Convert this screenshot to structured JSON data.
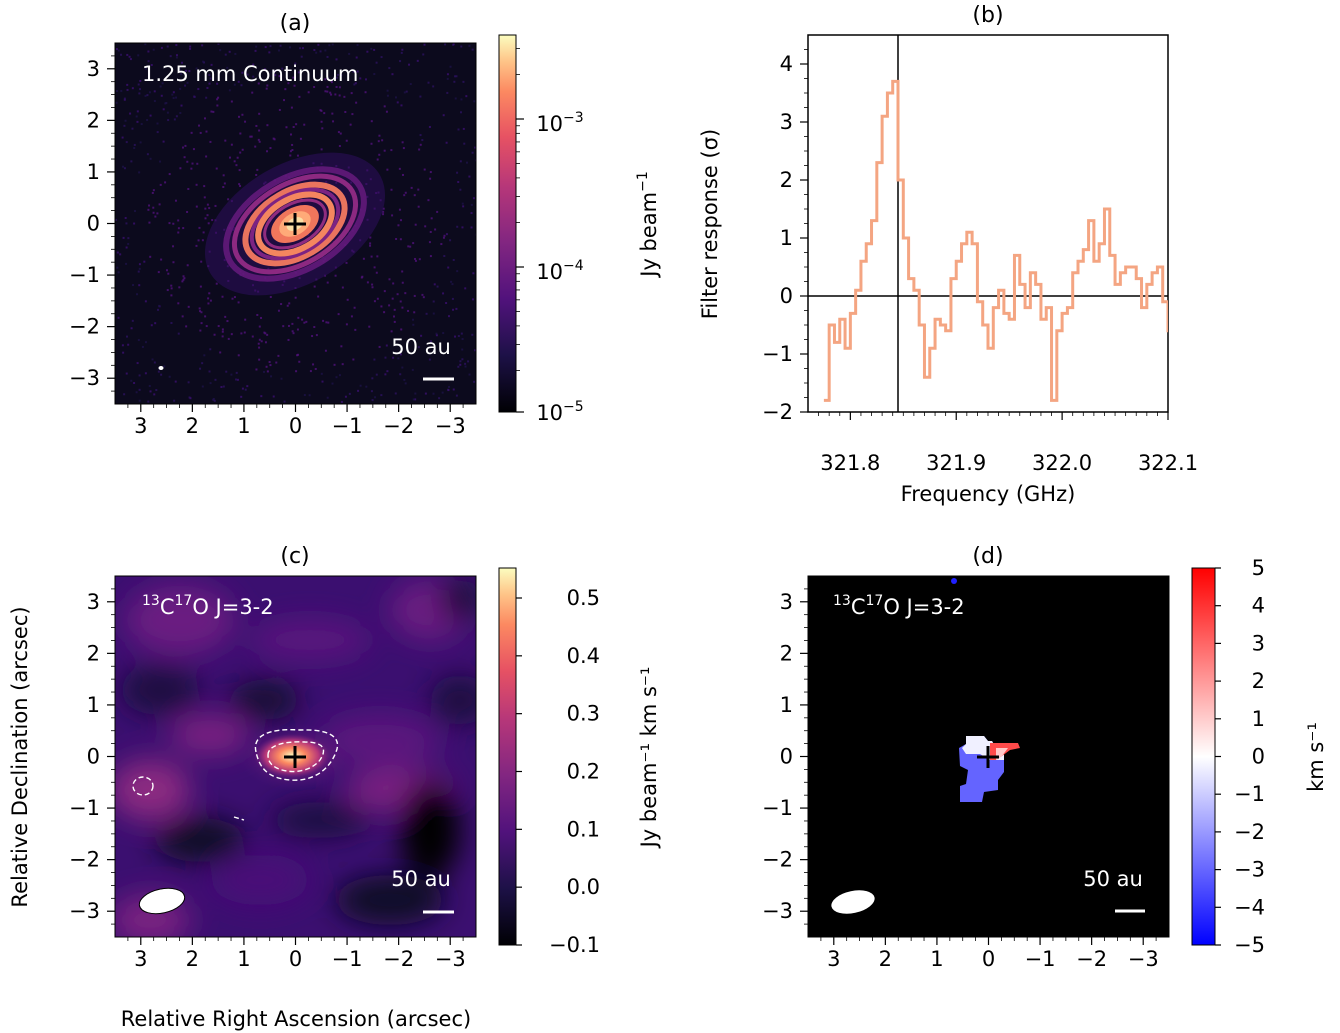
{
  "panels": {
    "a": {
      "label": "(a)",
      "annotation": "1.25 mm Continuum",
      "scalebar": "50 au",
      "colorbar": {
        "label_main": "Jy beam",
        "label_exp": "−1",
        "ticks": [
          {
            "base": "10",
            "exp": "−3"
          },
          {
            "base": "10",
            "exp": "−4"
          },
          {
            "base": "10",
            "exp": "−5"
          }
        ]
      },
      "xticks": [
        "3",
        "2",
        "1",
        "0",
        "−1",
        "−2",
        "−3"
      ],
      "yticks": [
        "3",
        "2",
        "1",
        "0",
        "−1",
        "−2",
        "−3"
      ]
    },
    "b": {
      "label": "(b)",
      "xlabel": "Frequency (GHz)",
      "ylabel": "Filter response (σ)",
      "xticks": [
        "321.8",
        "321.9",
        "322.0",
        "322.1"
      ],
      "yticks": [
        "4",
        "3",
        "2",
        "1",
        "0",
        "−1",
        "−2"
      ]
    },
    "c": {
      "label": "(c)",
      "annotation": {
        "pre": "13",
        "mid": "C",
        "sup": "17",
        "post": "O J=3-2"
      },
      "scalebar": "50 au",
      "xlabel": "Relative Right Ascension (arcsec)",
      "ylabel": "Relative Declination (arcsec)",
      "colorbar": {
        "label": "Jy beam⁻¹ km s⁻¹",
        "ticks": [
          "0.5",
          "0.4",
          "0.3",
          "0.2",
          "0.1",
          "0.0",
          "−0.1"
        ]
      },
      "xticks": [
        "3",
        "2",
        "1",
        "0",
        "−1",
        "−2",
        "−3"
      ],
      "yticks": [
        "3",
        "2",
        "1",
        "0",
        "−1",
        "−2",
        "−3"
      ]
    },
    "d": {
      "label": "(d)",
      "annotation": {
        "pre": "13",
        "mid": "C",
        "sup": "17",
        "post": "O J=3-2"
      },
      "scalebar": "50 au",
      "colorbar": {
        "label": "km s⁻¹",
        "ticks": [
          "5",
          "4",
          "3",
          "2",
          "1",
          "0",
          "−1",
          "−2",
          "−3",
          "−4",
          "−5"
        ]
      },
      "xticks": [
        "3",
        "2",
        "1",
        "0",
        "−1",
        "−2",
        "−3"
      ],
      "yticks": [
        "3",
        "2",
        "1",
        "0",
        "−1",
        "−2",
        "−3"
      ]
    }
  },
  "chart_data": [
    {
      "type": "heatmap",
      "panel": "(a)",
      "title": "(a)",
      "annotation": "1.25 mm Continuum",
      "colorscale": "magma (log)",
      "colorbar_label": "Jy beam⁻¹",
      "colorbar_range": [
        1e-05,
        0.004
      ],
      "xlim": [
        3.5,
        -3.5
      ],
      "ylim": [
        -3.5,
        3.5
      ]
    },
    {
      "type": "line",
      "panel": "(b)",
      "title": "(b)",
      "xlabel": "Frequency (GHz)",
      "ylabel": "Filter response (σ)",
      "xlim": [
        321.76,
        322.1
      ],
      "ylim": [
        -2,
        4.5
      ],
      "vline_x": 321.845,
      "hline_y": 0,
      "series": [
        {
          "color": "#f4a582",
          "x": [
            321.775,
            321.78,
            321.785,
            321.79,
            321.795,
            321.8,
            321.805,
            321.81,
            321.815,
            321.82,
            321.825,
            321.83,
            321.835,
            321.84,
            321.845,
            321.85,
            321.855,
            321.86,
            321.865,
            321.87,
            321.875,
            321.88,
            321.885,
            321.89,
            321.895,
            321.9,
            321.905,
            321.91,
            321.915,
            321.92,
            321.925,
            321.93,
            321.935,
            321.94,
            321.945,
            321.95,
            321.955,
            321.96,
            321.965,
            321.97,
            321.975,
            321.98,
            321.985,
            321.99,
            321.995,
            322.0,
            322.005,
            322.01,
            322.015,
            322.02,
            322.025,
            322.03,
            322.035,
            322.04,
            322.045,
            322.05,
            322.055,
            322.06,
            322.065,
            322.07,
            322.075,
            322.08,
            322.085,
            322.09,
            322.095,
            322.1
          ],
          "y": [
            -1.8,
            -0.5,
            -0.8,
            -0.4,
            -0.9,
            -0.3,
            0.1,
            0.6,
            0.9,
            1.3,
            2.3,
            3.1,
            3.5,
            3.7,
            2.0,
            1.0,
            0.3,
            0.1,
            -0.5,
            -1.4,
            -0.9,
            -0.4,
            -0.5,
            -0.6,
            0.3,
            0.6,
            0.9,
            1.1,
            0.9,
            -0.1,
            -0.5,
            -0.9,
            -0.2,
            0.1,
            -0.3,
            -0.4,
            0.7,
            0.2,
            -0.2,
            0.4,
            0.2,
            -0.4,
            -0.2,
            -1.8,
            -0.6,
            -0.3,
            -0.2,
            0.4,
            0.6,
            0.8,
            1.3,
            0.6,
            0.9,
            1.5,
            0.7,
            0.2,
            0.4,
            0.5,
            0.5,
            0.3,
            -0.2,
            0.2,
            0.4,
            0.5,
            -0.1,
            -0.6
          ]
        }
      ]
    },
    {
      "type": "heatmap",
      "panel": "(c)",
      "title": "(c)",
      "annotation": "13C17O J=3-2",
      "colorscale": "magma",
      "colorbar_label": "Jy beam⁻¹ km s⁻¹",
      "colorbar_range": [
        -0.1,
        0.55
      ],
      "xlabel": "Relative Right Ascension (arcsec)",
      "ylabel": "Relative Declination (arcsec)",
      "xlim": [
        3.5,
        -3.5
      ],
      "ylim": [
        -3.5,
        3.5
      ]
    },
    {
      "type": "heatmap",
      "panel": "(d)",
      "title": "(d)",
      "annotation": "13C17O J=3-2",
      "colorscale": "bwr",
      "colorbar_label": "km s⁻¹",
      "colorbar_range": [
        -5,
        5
      ],
      "xlim": [
        3.5,
        -3.5
      ],
      "ylim": [
        -3.5,
        3.5
      ]
    }
  ]
}
